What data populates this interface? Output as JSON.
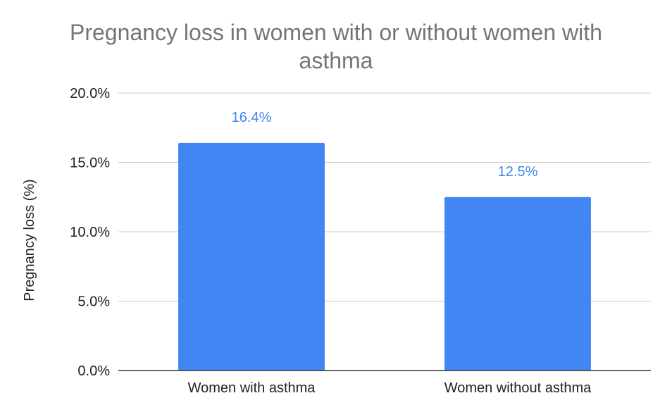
{
  "chart_data": {
    "type": "bar",
    "title_lines": [
      "Pregnancy loss in women with or without women with",
      "asthma"
    ],
    "xlabel": "",
    "ylabel": "Pregnancy loss (%)",
    "categories": [
      "Women with asthma",
      "Women without asthma"
    ],
    "values": [
      16.4,
      12.5
    ],
    "data_labels": [
      "16.4%",
      "12.5%"
    ],
    "ylim": [
      0,
      20
    ],
    "yticks": [
      0,
      5,
      10,
      15,
      20
    ],
    "ytick_labels": [
      "0.0%",
      "5.0%",
      "10.0%",
      "15.0%",
      "20.0%"
    ],
    "grid": true,
    "legend": "none",
    "colors": {
      "bar": "#4285f4",
      "data_label": "#4285f4",
      "title": "#757575",
      "grid": "#cccccc",
      "axis": "#333333",
      "text": "#222222"
    }
  }
}
